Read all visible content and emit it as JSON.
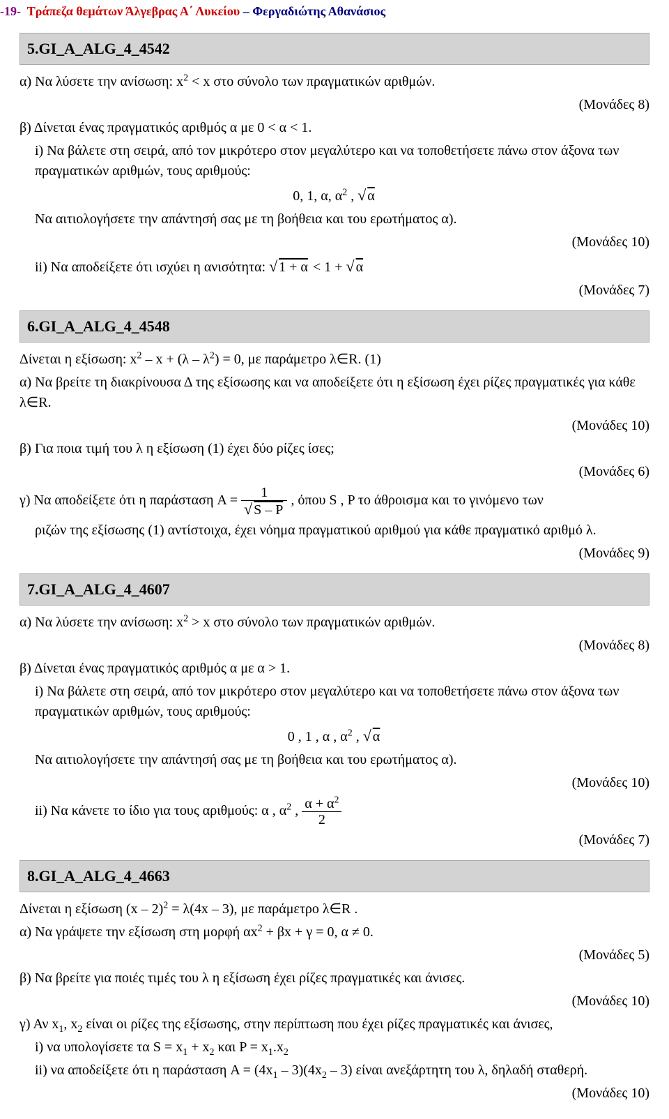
{
  "header": {
    "page_num": "-19-",
    "title_red": "Τράπεζα θεμάτων  Άλγεβρας Α΄ Λυκείου",
    "dash": " – ",
    "title_blue": "Φεργαδιώτης Αθανάσιος"
  },
  "sec5": {
    "id": "5.GI_A_ALG_4_4542",
    "a_pre": "α) Να λύσετε την ανίσωση:   x",
    "a_sup": "2",
    "a_post": " < x      στο σύνολο των πραγματικών αριθμών.",
    "m8": "(Μονάδες 8)",
    "b": "β) Δίνεται ένας πραγματικός αριθμός α με  0 < α < 1.",
    "i1": "i)  Να βάλετε στη σειρά, από τον μικρότερο στον μεγαλύτερο και να τοποθετήσετε  πάνω στον άξονα των πραγματικών αριθμών, τους αριθμούς:",
    "nums": "0,    1,    α,    α",
    "nums_sup": "2",
    "nums_post": " ,    ",
    "rad_a": "α",
    "i1b": "Να αιτιολογήσετε την απάντησή σας με τη βοήθεια και του ερωτήματος α).",
    "m10": "(Μονάδες 10)",
    "ii_pre": "ii) Να αποδείξετε ότι ισχύει η ανισότητα:   ",
    "ii_sqrt": "1 + α",
    "ii_mid": "  < 1 + ",
    "ii_sqrt2": "α",
    "m7": "(Μονάδες 7)"
  },
  "sec6": {
    "id": "6.GI_A_ALG_4_4548",
    "l1": "Δίνεται η εξίσωση:                    x",
    "l1_sup": "2",
    "l1_mid": " – x + (λ – λ",
    "l1_sup2": "2",
    "l1_post": ") = 0,  με παράμετρο λ∈R.          (1)",
    "a": "α) Να βρείτε τη διακρίνουσα Δ της εξίσωσης και να αποδείξετε ότι η εξίσωση έχει ρίζες πραγματικές για κάθε λ∈R.",
    "m10": "(Μονάδες 10)",
    "b": "β) Για ποια τιμή του λ η εξίσωση (1) έχει δύο ρίζες ίσες;",
    "m6": "(Μονάδες 6)",
    "c_pre": "γ) Να αποδείξετε ότι η παράσταση    A = ",
    "frac_num": "1",
    "frac_den_pre": "S – P",
    "c_post": " ,   όπου S , P το άθροισμα και το  γινόμενο των",
    "c2": "ριζών της εξίσωσης (1) αντίστοιχα, έχει νόημα πραγματικού αριθμού για κάθε πραγματικό αριθμό λ.",
    "m9": "(Μονάδες 9)"
  },
  "sec7": {
    "id": "7.GI_A_ALG_4_4607",
    "a_pre": "α) Να λύσετε την ανίσωση:    x",
    "a_sup": "2",
    "a_post": " > x  στο σύνολο των πραγματικών αριθμών.",
    "m8": "(Μονάδες 8)",
    "b": "β) Δίνεται ένας πραγματικός αριθμός α με  α > 1.",
    "i1": "i)  Να βάλετε στη σειρά, από τον μικρότερο στον μεγαλύτερο και να τοποθετήσετε  πάνω  στον άξονα των πραγματικών αριθμών, τους αριθμούς:",
    "nums": "0  ,  1  ,  α ,   α",
    "nums_sup": "2",
    "nums_post": "  , ",
    "rad_a": "α",
    "i1b": "Να αιτιολογήσετε την απάντησή σας με τη βοήθεια και του ερωτήματος α).",
    "m10": "(Μονάδες 10)",
    "ii_pre": "ii) Να κάνετε το ίδιο για τους αριθμούς:   α , α",
    "ii_sup": "2",
    "ii_mid": " ,  ",
    "frac_num_pre": "α + α",
    "frac_num_sup": "2",
    "frac_den": "2",
    "m7": "(Μονάδες 7)"
  },
  "sec8": {
    "id": "8.GI_A_ALG_4_4663",
    "l1_pre": "Δίνεται η εξίσωση      (x – 2)",
    "l1_sup": "2",
    "l1_post": " = λ(4x – 3),   με παράμετρο λ∈R .",
    "a_pre": "α) Να γράψετε την εξίσωση στη μορφή αx",
    "a_sup": "2",
    "a_post": " + βx + γ = 0, α ≠ 0.",
    "m5": "(Μονάδες 5)",
    "b": "β) Να βρείτε για ποιές τιμές του λ η εξίσωση έχει ρίζες πραγματικές και άνισες.",
    "m10": "(Μονάδες 10)",
    "c_pre": "γ)  Αν x",
    "c_s1": "1",
    "c_mid1": ", x",
    "c_s2": "2",
    "c_post": " είναι οι ρίζες της εξίσωσης, στην περίπτωση που έχει ρίζες πραγματικές και άνισες,",
    "i_pre": "i)  να υπολογίσετε τα S = x",
    "i_s1": "1",
    "i_mid1": " + x",
    "i_s2": "2",
    "i_mid2": "   και   P = x",
    "i_s3": "1",
    "i_mid3": ".x",
    "i_s4": "2",
    "ii_pre": "ii) να αποδείξετε ότι η παράσταση  A = (4x",
    "ii_s1": "1",
    "ii_mid1": " – 3)(4x",
    "ii_s2": "2",
    "ii_post": " – 3) είναι ανεξάρτητη του λ, δηλαδή σταθερή.",
    "m10b": "(Μονάδες 10)"
  }
}
